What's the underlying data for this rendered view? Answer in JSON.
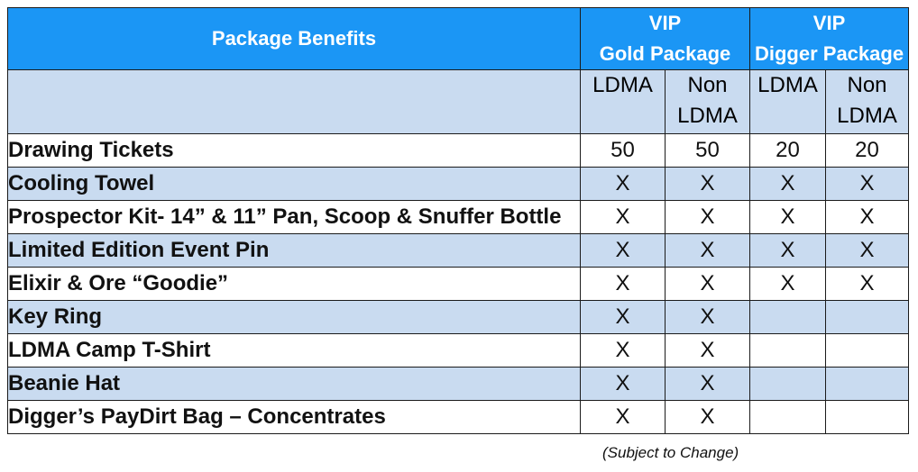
{
  "header": {
    "benefits_title": "Package Benefits",
    "gold_line1": "VIP",
    "gold_line2": "Gold Package",
    "digger_line1": "VIP",
    "digger_line2": "Digger Package"
  },
  "subheader": {
    "gold_ldma": "LDMA",
    "gold_non_line1": "Non",
    "gold_non_line2": "LDMA",
    "digger_ldma": "LDMA",
    "digger_non_line1": "Non",
    "digger_non_line2": "LDMA"
  },
  "rows": [
    {
      "label": "Drawing Tickets",
      "values": [
        "50",
        "50",
        "20",
        "20"
      ]
    },
    {
      "label": "Cooling Towel",
      "values": [
        "X",
        "X",
        "X",
        "X"
      ]
    },
    {
      "label": "Prospector Kit- 14” & 11” Pan, Scoop & Snuffer Bottle",
      "values": [
        "X",
        "X",
        "X",
        "X"
      ]
    },
    {
      "label": "Limited Edition Event Pin",
      "values": [
        "X",
        "X",
        "X",
        "X"
      ]
    },
    {
      "label": "Elixir & Ore “Goodie”",
      "values": [
        "X",
        "X",
        "X",
        "X"
      ]
    },
    {
      "label": "Key Ring",
      "values": [
        "X",
        "X",
        "",
        ""
      ]
    },
    {
      "label": "LDMA Camp T-Shirt",
      "values": [
        "X",
        "X",
        "",
        ""
      ]
    },
    {
      "label": "Beanie Hat",
      "values": [
        "X",
        "X",
        "",
        ""
      ]
    },
    {
      "label": "Digger’s PayDirt Bag – Concentrates",
      "values": [
        "X",
        "X",
        "",
        ""
      ]
    }
  ],
  "footnote": "(Subject to Change)",
  "colors": {
    "header_bg": "#1b96f5",
    "band_bg": "#c9dbf0"
  }
}
